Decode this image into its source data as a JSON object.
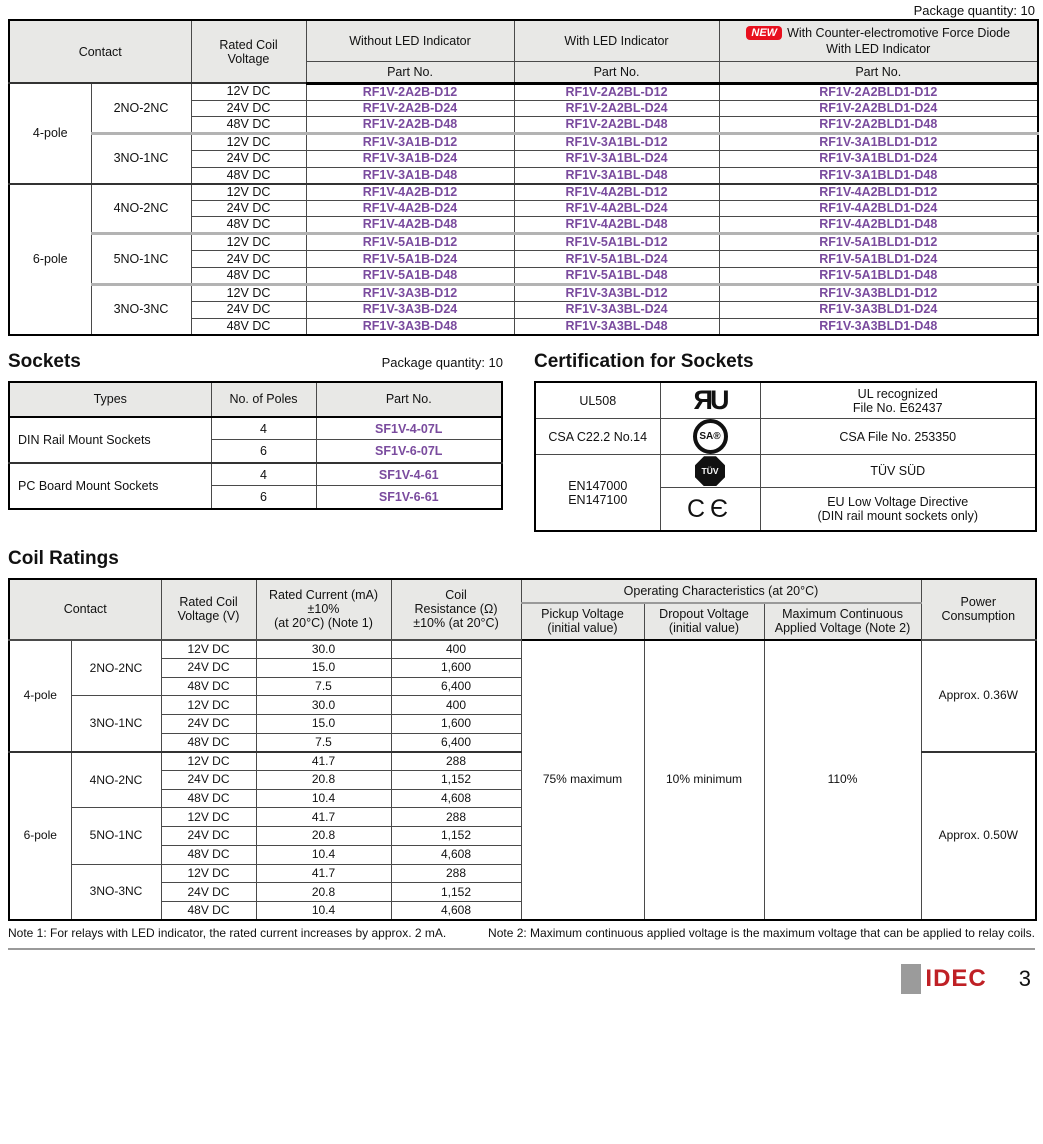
{
  "page": {
    "package_qty_top": "Package quantity: 10",
    "brand": "IDEC",
    "page_number": "3"
  },
  "part_table": {
    "headers": {
      "contact": "Contact",
      "voltage": "Rated Coil\nVoltage",
      "without_led": "Without LED Indicator",
      "with_led": "With LED Indicator",
      "new_badge": "NEW",
      "diode_line1": "With Counter-electromotive Force Diode",
      "diode_line2": "With LED Indicator",
      "part_no": "Part No."
    },
    "groups": [
      {
        "pole": "4-pole",
        "contacts": [
          {
            "name": "2NO-2NC",
            "rows": [
              {
                "voltage": "12V DC",
                "without": "RF1V-2A2B-D12",
                "with_led": "RF1V-2A2BL-D12",
                "diode": "RF1V-2A2BLD1-D12"
              },
              {
                "voltage": "24V DC",
                "without": "RF1V-2A2B-D24",
                "with_led": "RF1V-2A2BL-D24",
                "diode": "RF1V-2A2BLD1-D24"
              },
              {
                "voltage": "48V DC",
                "without": "RF1V-2A2B-D48",
                "with_led": "RF1V-2A2BL-D48",
                "diode": "RF1V-2A2BLD1-D48"
              }
            ]
          },
          {
            "name": "3NO-1NC",
            "rows": [
              {
                "voltage": "12V DC",
                "without": "RF1V-3A1B-D12",
                "with_led": "RF1V-3A1BL-D12",
                "diode": "RF1V-3A1BLD1-D12"
              },
              {
                "voltage": "24V DC",
                "without": "RF1V-3A1B-D24",
                "with_led": "RF1V-3A1BL-D24",
                "diode": "RF1V-3A1BLD1-D24"
              },
              {
                "voltage": "48V DC",
                "without": "RF1V-3A1B-D48",
                "with_led": "RF1V-3A1BL-D48",
                "diode": "RF1V-3A1BLD1-D48"
              }
            ]
          }
        ]
      },
      {
        "pole": "6-pole",
        "contacts": [
          {
            "name": "4NO-2NC",
            "rows": [
              {
                "voltage": "12V DC",
                "without": "RF1V-4A2B-D12",
                "with_led": "RF1V-4A2BL-D12",
                "diode": "RF1V-4A2BLD1-D12"
              },
              {
                "voltage": "24V DC",
                "without": "RF1V-4A2B-D24",
                "with_led": "RF1V-4A2BL-D24",
                "diode": "RF1V-4A2BLD1-D24"
              },
              {
                "voltage": "48V DC",
                "without": "RF1V-4A2B-D48",
                "with_led": "RF1V-4A2BL-D48",
                "diode": "RF1V-4A2BLD1-D48"
              }
            ]
          },
          {
            "name": "5NO-1NC",
            "rows": [
              {
                "voltage": "12V DC",
                "without": "RF1V-5A1B-D12",
                "with_led": "RF1V-5A1BL-D12",
                "diode": "RF1V-5A1BLD1-D12"
              },
              {
                "voltage": "24V DC",
                "without": "RF1V-5A1B-D24",
                "with_led": "RF1V-5A1BL-D24",
                "diode": "RF1V-5A1BLD1-D24"
              },
              {
                "voltage": "48V DC",
                "without": "RF1V-5A1B-D48",
                "with_led": "RF1V-5A1BL-D48",
                "diode": "RF1V-5A1BLD1-D48"
              }
            ]
          },
          {
            "name": "3NO-3NC",
            "rows": [
              {
                "voltage": "12V DC",
                "without": "RF1V-3A3B-D12",
                "with_led": "RF1V-3A3BL-D12",
                "diode": "RF1V-3A3BLD1-D12"
              },
              {
                "voltage": "24V DC",
                "without": "RF1V-3A3B-D24",
                "with_led": "RF1V-3A3BL-D24",
                "diode": "RF1V-3A3BLD1-D24"
              },
              {
                "voltage": "48V DC",
                "without": "RF1V-3A3B-D48",
                "with_led": "RF1V-3A3BL-D48",
                "diode": "RF1V-3A3BLD1-D48"
              }
            ]
          }
        ]
      }
    ]
  },
  "sockets": {
    "title": "Sockets",
    "package_qty": "Package quantity: 10",
    "headers": {
      "types": "Types",
      "poles": "No. of Poles",
      "part": "Part No."
    },
    "rows": [
      {
        "type": "DIN Rail Mount Sockets",
        "entries": [
          {
            "poles": "4",
            "part": "SF1V-4-07L"
          },
          {
            "poles": "6",
            "part": "SF1V-6-07L"
          }
        ]
      },
      {
        "type": "PC Board Mount Sockets",
        "entries": [
          {
            "poles": "4",
            "part": "SF1V-4-61"
          },
          {
            "poles": "6",
            "part": "SF1V-6-61"
          }
        ]
      }
    ]
  },
  "certification": {
    "title": "Certification for Sockets",
    "rows": [
      {
        "standard": "UL508",
        "logo": "ul-recognized-logo",
        "glyph": "ЯU",
        "desc": "UL recognized\nFile No. E62437"
      },
      {
        "standard": "CSA C22.2 No.14",
        "logo": "csa-logo",
        "glyph": "SA®",
        "desc": "CSA File No. 253350"
      },
      {
        "standard": "EN147000\nEN147100",
        "logo": "tuv-logo",
        "glyph": "TÜV",
        "desc": "TÜV SÜD"
      },
      {
        "logo": "ce-logo",
        "glyph": "CЄ",
        "desc": "EU Low Voltage Directive\n(DIN rail mount sockets only)"
      }
    ]
  },
  "coil_ratings": {
    "title": "Coil Ratings",
    "headers": {
      "contact": "Contact",
      "voltage": "Rated Coil\nVoltage (V)",
      "current": "Rated Current (mA)\n±10%\n(at 20°C) (Note 1)",
      "resistance": "Coil\nResistance (Ω)\n±10% (at 20°C)",
      "operating": "Operating Characteristics  (at 20°C)",
      "pickup": "Pickup Voltage\n(initial value)",
      "dropout": "Dropout Voltage\n(initial value)",
      "max_voltage": "Maximum Continuous\nApplied Voltage (Note 2)",
      "power": "Power\nConsumption"
    },
    "operating_values": {
      "pickup": "75% maximum",
      "dropout": "10% minimum",
      "max_voltage": "110%"
    },
    "groups": [
      {
        "pole": "4-pole",
        "power": "Approx. 0.36W",
        "contacts": [
          {
            "name": "2NO-2NC",
            "rows": [
              [
                "12V DC",
                "30.0",
                "400"
              ],
              [
                "24V DC",
                "15.0",
                "1,600"
              ],
              [
                "48V DC",
                "7.5",
                "6,400"
              ]
            ]
          },
          {
            "name": "3NO-1NC",
            "rows": [
              [
                "12V DC",
                "30.0",
                "400"
              ],
              [
                "24V DC",
                "15.0",
                "1,600"
              ],
              [
                "48V DC",
                "7.5",
                "6,400"
              ]
            ]
          }
        ]
      },
      {
        "pole": "6-pole",
        "power": "Approx. 0.50W",
        "contacts": [
          {
            "name": "4NO-2NC",
            "rows": [
              [
                "12V DC",
                "41.7",
                "288"
              ],
              [
                "24V DC",
                "20.8",
                "1,152"
              ],
              [
                "48V DC",
                "10.4",
                "4,608"
              ]
            ]
          },
          {
            "name": "5NO-1NC",
            "rows": [
              [
                "12V DC",
                "41.7",
                "288"
              ],
              [
                "24V DC",
                "20.8",
                "1,152"
              ],
              [
                "48V DC",
                "10.4",
                "4,608"
              ]
            ]
          },
          {
            "name": "3NO-3NC",
            "rows": [
              [
                "12V DC",
                "41.7",
                "288"
              ],
              [
                "24V DC",
                "20.8",
                "1,152"
              ],
              [
                "48V DC",
                "10.4",
                "4,608"
              ]
            ]
          }
        ]
      }
    ]
  },
  "notes": {
    "note1": "Note 1: For relays with LED indicator, the rated current increases by approx. 2 mA.",
    "note2": "Note 2: Maximum continuous applied voltage is the maximum voltage that can be applied to relay coils."
  }
}
